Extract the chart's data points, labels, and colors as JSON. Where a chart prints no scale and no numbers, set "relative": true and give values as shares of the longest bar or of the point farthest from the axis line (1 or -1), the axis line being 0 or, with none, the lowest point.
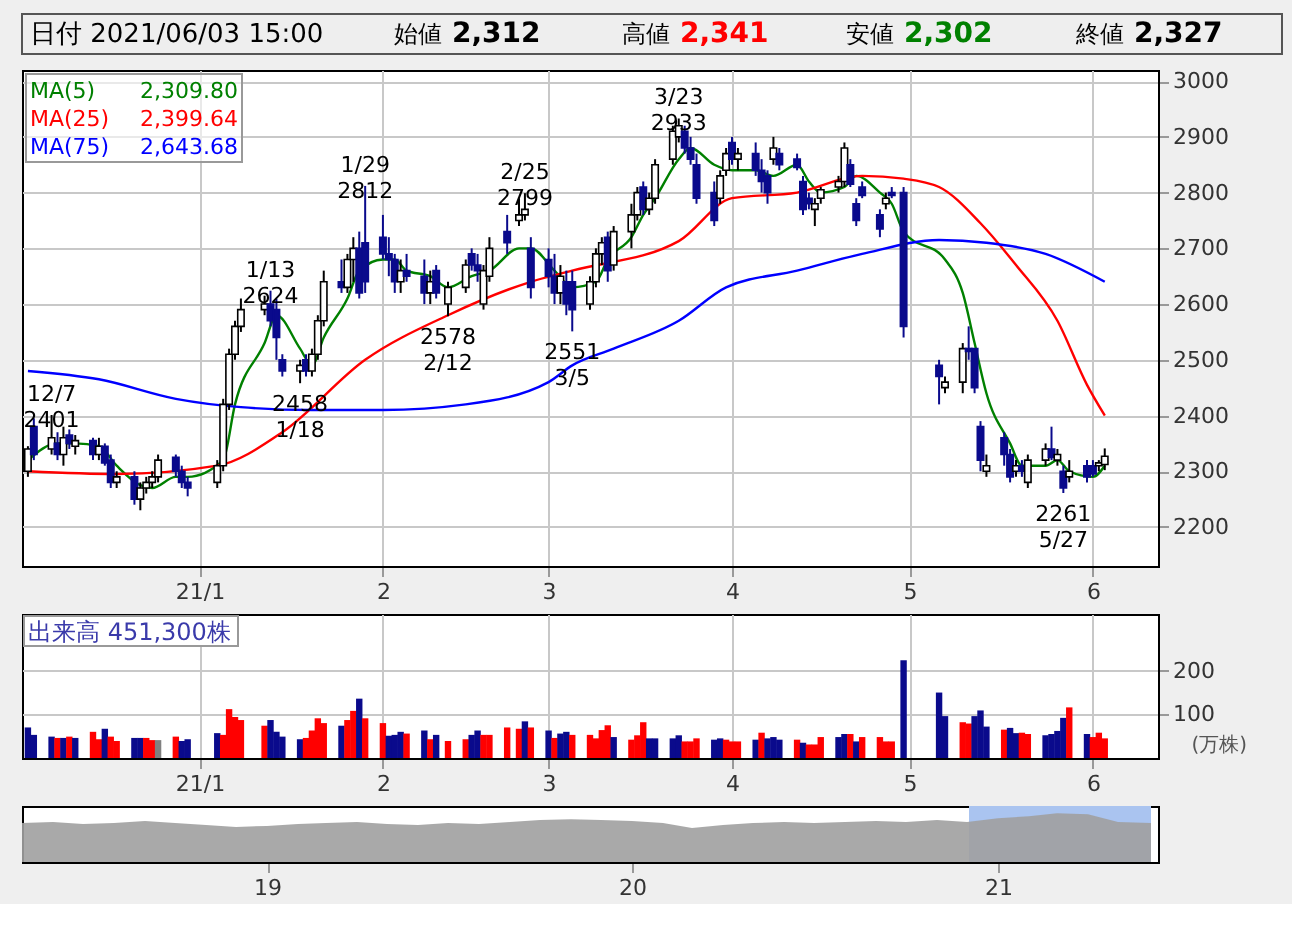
{
  "chart_data": [
    {
      "type": "candlestick",
      "annotations": [
        "日付 2021/06/03 15:00",
        "始値 2,312",
        "高値 2,341",
        "安値 2,302",
        "終値 2,327",
        {
          "text": "12/7 2401",
          "x": "2020-12-07",
          "y": 2401
        },
        {
          "text": "1/13 2624",
          "x": "2021-01-13",
          "y": 2624
        },
        {
          "text": "1/29 2812",
          "x": "2021-01-29",
          "y": 2812
        },
        {
          "text": "2/25 2799",
          "x": "2021-02-25",
          "y": 2799
        },
        {
          "text": "3/23 2933",
          "x": "2021-03-23",
          "y": 2933
        },
        {
          "text": "2458 1/18",
          "x": "2021-01-18",
          "y": 2458
        },
        {
          "text": "2578 2/12",
          "x": "2021-02-12",
          "y": 2578
        },
        {
          "text": "2551 3/5",
          "x": "2021-03-05",
          "y": 2551
        },
        {
          "text": "2261 5/27",
          "x": "2021-05-27",
          "y": 2261
        }
      ],
      "x": [
        "2020-12-03",
        "2020-12-04",
        "2020-12-07",
        "2020-12-08",
        "2020-12-09",
        "2020-12-10",
        "2020-12-11",
        "2020-12-14",
        "2020-12-15",
        "2020-12-16",
        "2020-12-17",
        "2020-12-18",
        "2020-12-21",
        "2020-12-22",
        "2020-12-23",
        "2020-12-24",
        "2020-12-25",
        "2020-12-28",
        "2020-12-29",
        "2020-12-30",
        "2021-01-04",
        "2021-01-05",
        "2021-01-06",
        "2021-01-07",
        "2021-01-08",
        "2021-01-12",
        "2021-01-13",
        "2021-01-14",
        "2021-01-15",
        "2021-01-18",
        "2021-01-19",
        "2021-01-20",
        "2021-01-21",
        "2021-01-22",
        "2021-01-25",
        "2021-01-26",
        "2021-01-27",
        "2021-01-28",
        "2021-01-29",
        "2021-02-01",
        "2021-02-02",
        "2021-02-03",
        "2021-02-04",
        "2021-02-05",
        "2021-02-08",
        "2021-02-09",
        "2021-02-10",
        "2021-02-12",
        "2021-02-15",
        "2021-02-16",
        "2021-02-17",
        "2021-02-18",
        "2021-02-19",
        "2021-02-22",
        "2021-02-24",
        "2021-02-25",
        "2021-02-26",
        "2021-03-01",
        "2021-03-02",
        "2021-03-03",
        "2021-03-04",
        "2021-03-05",
        "2021-03-08",
        "2021-03-09",
        "2021-03-10",
        "2021-03-11",
        "2021-03-12",
        "2021-03-15",
        "2021-03-16",
        "2021-03-17",
        "2021-03-18",
        "2021-03-19",
        "2021-03-22",
        "2021-03-23",
        "2021-03-24",
        "2021-03-25",
        "2021-03-26",
        "2021-03-29",
        "2021-03-30",
        "2021-03-31",
        "2021-04-01",
        "2021-04-02",
        "2021-04-05",
        "2021-04-06",
        "2021-04-07",
        "2021-04-08",
        "2021-04-09",
        "2021-04-12",
        "2021-04-13",
        "2021-04-14",
        "2021-04-15",
        "2021-04-16",
        "2021-04-19",
        "2021-04-20",
        "2021-04-21",
        "2021-04-22",
        "2021-04-23",
        "2021-04-26",
        "2021-04-27",
        "2021-04-28",
        "2021-04-30",
        "2021-05-06",
        "2021-05-07",
        "2021-05-10",
        "2021-05-11",
        "2021-05-12",
        "2021-05-13",
        "2021-05-14",
        "2021-05-17",
        "2021-05-18",
        "2021-05-19",
        "2021-05-20",
        "2021-05-21",
        "2021-05-24",
        "2021-05-25",
        "2021-05-26",
        "2021-05-27",
        "2021-05-28",
        "2021-05-31",
        "2021-06-01",
        "2021-06-02",
        "2021-06-03"
      ],
      "ohlc": [
        [
          2300,
          2345,
          2290,
          2340
        ],
        [
          2380,
          2395,
          2320,
          2330
        ],
        [
          2340,
          2401,
          2330,
          2360
        ],
        [
          2350,
          2370,
          2320,
          2330
        ],
        [
          2330,
          2380,
          2310,
          2360
        ],
        [
          2365,
          2375,
          2340,
          2350
        ],
        [
          2345,
          2365,
          2330,
          2355
        ],
        [
          2355,
          2360,
          2320,
          2330
        ],
        [
          2330,
          2360,
          2320,
          2345
        ],
        [
          2345,
          2350,
          2310,
          2315
        ],
        [
          2320,
          2330,
          2270,
          2280
        ],
        [
          2280,
          2300,
          2270,
          2290
        ],
        [
          2290,
          2300,
          2240,
          2250
        ],
        [
          2250,
          2280,
          2230,
          2270
        ],
        [
          2270,
          2290,
          2260,
          2280
        ],
        [
          2280,
          2300,
          2270,
          2290
        ],
        [
          2290,
          2330,
          2280,
          2320
        ],
        [
          2325,
          2330,
          2290,
          2300
        ],
        [
          2300,
          2310,
          2270,
          2280
        ],
        [
          2280,
          2290,
          2255,
          2270
        ],
        [
          2280,
          2320,
          2270,
          2310
        ],
        [
          2310,
          2430,
          2300,
          2420
        ],
        [
          2420,
          2520,
          2410,
          2510
        ],
        [
          2510,
          2570,
          2500,
          2560
        ],
        [
          2560,
          2610,
          2550,
          2590
        ],
        [
          2590,
          2615,
          2580,
          2600
        ],
        [
          2600,
          2624,
          2560,
          2570
        ],
        [
          2590,
          2610,
          2500,
          2540
        ],
        [
          2500,
          2510,
          2470,
          2480
        ],
        [
          2480,
          2500,
          2458,
          2490
        ],
        [
          2500,
          2510,
          2470,
          2480
        ],
        [
          2480,
          2520,
          2470,
          2510
        ],
        [
          2510,
          2580,
          2500,
          2570
        ],
        [
          2570,
          2660,
          2560,
          2640
        ],
        [
          2640,
          2680,
          2620,
          2630
        ],
        [
          2630,
          2690,
          2620,
          2680
        ],
        [
          2680,
          2720,
          2640,
          2700
        ],
        [
          2700,
          2730,
          2610,
          2620
        ],
        [
          2710,
          2812,
          2620,
          2640
        ],
        [
          2720,
          2760,
          2680,
          2690
        ],
        [
          2690,
          2720,
          2650,
          2680
        ],
        [
          2680,
          2690,
          2620,
          2640
        ],
        [
          2640,
          2680,
          2620,
          2660
        ],
        [
          2660,
          2690,
          2640,
          2650
        ],
        [
          2650,
          2680,
          2600,
          2620
        ],
        [
          2620,
          2660,
          2600,
          2640
        ],
        [
          2660,
          2670,
          2610,
          2620
        ],
        [
          2600,
          2640,
          2578,
          2630
        ],
        [
          2630,
          2680,
          2620,
          2670
        ],
        [
          2690,
          2700,
          2660,
          2670
        ],
        [
          2670,
          2690,
          2640,
          2660
        ],
        [
          2600,
          2670,
          2590,
          2660
        ],
        [
          2650,
          2720,
          2640,
          2700
        ],
        [
          2730,
          2760,
          2690,
          2710
        ],
        [
          2750,
          2790,
          2740,
          2760
        ],
        [
          2760,
          2799,
          2750,
          2770
        ],
        [
          2700,
          2720,
          2610,
          2630
        ],
        [
          2680,
          2700,
          2630,
          2650
        ],
        [
          2650,
          2690,
          2600,
          2620
        ],
        [
          2620,
          2670,
          2600,
          2650
        ],
        [
          2640,
          2660,
          2580,
          2600
        ],
        [
          2640,
          2660,
          2551,
          2590
        ],
        [
          2600,
          2650,
          2590,
          2640
        ],
        [
          2640,
          2700,
          2630,
          2690
        ],
        [
          2690,
          2720,
          2670,
          2710
        ],
        [
          2720,
          2730,
          2640,
          2660
        ],
        [
          2670,
          2740,
          2660,
          2730
        ],
        [
          2730,
          2780,
          2700,
          2760
        ],
        [
          2760,
          2810,
          2750,
          2800
        ],
        [
          2810,
          2820,
          2760,
          2770
        ],
        [
          2770,
          2800,
          2760,
          2790
        ],
        [
          2790,
          2860,
          2780,
          2850
        ],
        [
          2860,
          2920,
          2850,
          2910
        ],
        [
          2900,
          2933,
          2890,
          2920
        ],
        [
          2910,
          2920,
          2870,
          2880
        ],
        [
          2880,
          2900,
          2850,
          2860
        ],
        [
          2850,
          2870,
          2780,
          2790
        ],
        [
          2800,
          2820,
          2740,
          2750
        ],
        [
          2790,
          2840,
          2780,
          2830
        ],
        [
          2840,
          2880,
          2830,
          2870
        ],
        [
          2890,
          2900,
          2850,
          2860
        ],
        [
          2860,
          2880,
          2840,
          2870
        ],
        [
          2870,
          2890,
          2830,
          2840
        ],
        [
          2840,
          2860,
          2800,
          2820
        ],
        [
          2830,
          2840,
          2780,
          2800
        ],
        [
          2860,
          2900,
          2850,
          2880
        ],
        [
          2870,
          2880,
          2840,
          2850
        ],
        [
          2860,
          2870,
          2840,
          2845
        ],
        [
          2820,
          2830,
          2760,
          2770
        ],
        [
          2790,
          2800,
          2770,
          2780
        ],
        [
          2770,
          2790,
          2740,
          2780
        ],
        [
          2790,
          2810,
          2780,
          2805
        ],
        [
          2810,
          2830,
          2800,
          2820
        ],
        [
          2820,
          2890,
          2810,
          2880
        ],
        [
          2850,
          2860,
          2810,
          2815
        ],
        [
          2780,
          2790,
          2740,
          2750
        ],
        [
          2810,
          2820,
          2790,
          2795
        ],
        [
          2760,
          2770,
          2720,
          2735
        ],
        [
          2780,
          2800,
          2770,
          2790
        ],
        [
          2800,
          2810,
          2790,
          2795
        ],
        [
          2800,
          2810,
          2540,
          2560
        ],
        [
          2490,
          2500,
          2420,
          2470
        ],
        [
          2450,
          2470,
          2440,
          2460
        ],
        [
          2460,
          2530,
          2440,
          2520
        ],
        [
          2520,
          2560,
          2500,
          2515
        ],
        [
          2520,
          2520,
          2440,
          2450
        ],
        [
          2380,
          2390,
          2300,
          2320
        ],
        [
          2300,
          2330,
          2290,
          2310
        ],
        [
          2360,
          2370,
          2310,
          2330
        ],
        [
          2330,
          2340,
          2280,
          2290
        ],
        [
          2300,
          2320,
          2290,
          2310
        ],
        [
          2310,
          2320,
          2290,
          2300
        ],
        [
          2280,
          2330,
          2270,
          2320
        ],
        [
          2320,
          2350,
          2310,
          2340
        ],
        [
          2340,
          2380,
          2320,
          2325
        ],
        [
          2320,
          2340,
          2310,
          2330
        ],
        [
          2300,
          2310,
          2261,
          2270
        ],
        [
          2290,
          2320,
          2280,
          2300
        ],
        [
          2310,
          2320,
          2280,
          2290
        ],
        [
          2310,
          2320,
          2290,
          2295
        ],
        [
          2310,
          2320,
          2300,
          2315
        ],
        [
          2312,
          2341,
          2302,
          2327
        ]
      ],
      "series": [
        {
          "name": "MA(5) 2,309.80",
          "type": "line",
          "color": "#008000",
          "x": [
            "2020-12-03",
            "2020-12-08",
            "2020-12-11",
            "2020-12-15",
            "2020-12-18",
            "2020-12-22",
            "2020-12-24",
            "2020-12-28",
            "2020-12-30",
            "2021-01-05",
            "2021-01-07",
            "2021-01-12",
            "2021-01-14",
            "2021-01-18",
            "2021-01-20",
            "2021-01-22",
            "2021-01-26",
            "2021-01-28",
            "2021-02-01",
            "2021-02-03",
            "2021-02-05",
            "2021-02-09",
            "2021-02-12",
            "2021-02-16",
            "2021-02-19",
            "2021-02-24",
            "2021-02-26",
            "2021-03-02",
            "2021-03-05",
            "2021-03-09",
            "2021-03-11",
            "2021-03-15",
            "2021-03-17",
            "2021-03-19",
            "2021-03-23",
            "2021-03-25",
            "2021-03-29",
            "2021-04-01",
            "2021-04-05",
            "2021-04-08",
            "2021-04-12",
            "2021-04-14",
            "2021-04-16",
            "2021-04-20",
            "2021-04-22",
            "2021-04-26",
            "2021-04-28",
            "2021-04-30",
            "2021-05-07",
            "2021-05-10",
            "2021-05-12",
            "2021-05-14",
            "2021-05-18",
            "2021-05-20",
            "2021-05-24",
            "2021-05-26",
            "2021-05-28",
            "2021-06-01",
            "2021-06-03"
          ],
          "values": [
            2320,
            2350,
            2350,
            2345,
            2310,
            2275,
            2270,
            2290,
            2290,
            2320,
            2420,
            2530,
            2580,
            2520,
            2490,
            2540,
            2610,
            2660,
            2680,
            2680,
            2660,
            2650,
            2630,
            2650,
            2660,
            2700,
            2700,
            2660,
            2630,
            2640,
            2680,
            2720,
            2760,
            2790,
            2860,
            2880,
            2850,
            2840,
            2840,
            2830,
            2850,
            2820,
            2800,
            2810,
            2830,
            2800,
            2780,
            2730,
            2680,
            2620,
            2530,
            2440,
            2350,
            2310,
            2310,
            2320,
            2300,
            2290,
            2310
          ]
        },
        {
          "name": "MA(25) 2,399.64",
          "type": "line",
          "color": "#ff0000",
          "x": [
            "2020-12-03",
            "2020-12-18",
            "2021-01-04",
            "2021-01-15",
            "2021-01-29",
            "2021-02-12",
            "2021-02-26",
            "2021-03-05",
            "2021-03-23",
            "2021-04-01",
            "2021-04-12",
            "2021-04-23",
            "2021-04-30",
            "2021-05-06",
            "2021-05-13",
            "2021-05-19",
            "2021-05-26",
            "2021-05-31",
            "2021-06-03"
          ],
          "values": [
            2300,
            2295,
            2310,
            2370,
            2500,
            2580,
            2640,
            2660,
            2713,
            2790,
            2800,
            2830,
            2825,
            2810,
            2745,
            2670,
            2570,
            2455,
            2400
          ]
        },
        {
          "name": "MA(75) 2,643.68",
          "type": "line",
          "color": "#0000ff",
          "x": [
            "2020-12-03",
            "2020-12-15",
            "2020-12-28",
            "2021-01-08",
            "2021-01-20",
            "2021-02-01",
            "2021-02-15",
            "2021-03-01",
            "2021-03-05",
            "2021-03-12",
            "2021-03-23",
            "2021-03-31",
            "2021-04-12",
            "2021-04-23",
            "2021-05-06",
            "2021-05-14",
            "2021-05-24",
            "2021-06-03"
          ],
          "values": [
            2480,
            2465,
            2430,
            2415,
            2410,
            2410,
            2420,
            2460,
            2490,
            2520,
            2570,
            2630,
            2660,
            2690,
            2715,
            2710,
            2690,
            2640
          ]
        }
      ],
      "xlim": [
        "2020-12-02",
        "2021-06-12"
      ],
      "xticks": [
        {
          "value": "2021-01-01",
          "label": "21/1"
        },
        {
          "value": "2021-02-01",
          "label": "2"
        },
        {
          "value": "2021-03-01",
          "label": "3"
        },
        {
          "value": "2021-04-01",
          "label": "4"
        },
        {
          "value": "2021-05-01",
          "label": "5"
        },
        {
          "value": "2021-06-01",
          "label": "6"
        }
      ],
      "ylim": [
        2130,
        3020
      ],
      "yticks": [
        2200,
        2300,
        2400,
        2500,
        2600,
        2700,
        2800,
        2900,
        3000
      ],
      "grid": true
    },
    {
      "type": "bar",
      "title": "出来高 451,300株",
      "ylabel": "(万株)",
      "x": [
        "2020-12-03",
        "2020-12-04",
        "2020-12-07",
        "2020-12-08",
        "2020-12-09",
        "2020-12-10",
        "2020-12-11",
        "2020-12-14",
        "2020-12-15",
        "2020-12-16",
        "2020-12-17",
        "2020-12-18",
        "2020-12-21",
        "2020-12-22",
        "2020-12-23",
        "2020-12-24",
        "2020-12-25",
        "2020-12-28",
        "2020-12-29",
        "2020-12-30",
        "2021-01-04",
        "2021-01-05",
        "2021-01-06",
        "2021-01-07",
        "2021-01-08",
        "2021-01-12",
        "2021-01-13",
        "2021-01-14",
        "2021-01-15",
        "2021-01-18",
        "2021-01-19",
        "2021-01-20",
        "2021-01-21",
        "2021-01-22",
        "2021-01-25",
        "2021-01-26",
        "2021-01-27",
        "2021-01-28",
        "2021-01-29",
        "2021-02-01",
        "2021-02-02",
        "2021-02-03",
        "2021-02-04",
        "2021-02-05",
        "2021-02-08",
        "2021-02-09",
        "2021-02-10",
        "2021-02-12",
        "2021-02-15",
        "2021-02-16",
        "2021-02-17",
        "2021-02-18",
        "2021-02-19",
        "2021-02-22",
        "2021-02-24",
        "2021-02-25",
        "2021-02-26",
        "2021-03-01",
        "2021-03-02",
        "2021-03-03",
        "2021-03-04",
        "2021-03-05",
        "2021-03-08",
        "2021-03-09",
        "2021-03-10",
        "2021-03-11",
        "2021-03-12",
        "2021-03-15",
        "2021-03-16",
        "2021-03-17",
        "2021-03-18",
        "2021-03-19",
        "2021-03-22",
        "2021-03-23",
        "2021-03-24",
        "2021-03-25",
        "2021-03-26",
        "2021-03-29",
        "2021-03-30",
        "2021-03-31",
        "2021-04-01",
        "2021-04-02",
        "2021-04-05",
        "2021-04-06",
        "2021-04-07",
        "2021-04-08",
        "2021-04-09",
        "2021-04-12",
        "2021-04-13",
        "2021-04-14",
        "2021-04-15",
        "2021-04-16",
        "2021-04-19",
        "2021-04-20",
        "2021-04-21",
        "2021-04-22",
        "2021-04-23",
        "2021-04-26",
        "2021-04-27",
        "2021-04-28",
        "2021-04-30",
        "2021-05-06",
        "2021-05-07",
        "2021-05-10",
        "2021-05-11",
        "2021-05-12",
        "2021-05-13",
        "2021-05-14",
        "2021-05-17",
        "2021-05-18",
        "2021-05-19",
        "2021-05-20",
        "2021-05-21",
        "2021-05-24",
        "2021-05-25",
        "2021-05-26",
        "2021-05-27",
        "2021-05-28",
        "2021-05-31",
        "2021-06-01",
        "2021-06-02",
        "2021-06-03"
      ],
      "values": [
        70,
        53,
        49,
        46,
        46,
        49,
        46,
        60,
        43,
        67,
        49,
        39,
        46,
        46,
        46,
        41,
        41,
        49,
        39,
        43,
        57,
        53,
        112,
        94,
        87,
        74,
        87,
        60,
        49,
        43,
        46,
        63,
        91,
        80,
        74,
        87,
        108,
        136,
        91,
        80,
        51,
        53,
        60,
        56,
        63,
        43,
        53,
        39,
        43,
        53,
        63,
        53,
        53,
        70,
        67,
        84,
        70,
        63,
        46,
        56,
        60,
        53,
        53,
        45,
        64,
        75,
        48,
        42,
        52,
        82,
        45,
        45,
        45,
        52,
        38,
        38,
        45,
        42,
        45,
        42,
        38,
        38,
        42,
        58,
        45,
        48,
        42,
        42,
        35,
        31,
        31,
        48,
        48,
        55,
        55,
        38,
        48,
        48,
        38,
        38,
        224,
        150,
        96,
        82,
        79,
        96,
        109,
        72,
        65,
        69,
        57,
        58,
        55,
        52,
        55,
        62,
        92,
        116,
        55,
        48,
        58,
        45
      ],
      "colors": [
        "#0a0a8c",
        "#0a0a8c",
        "#0a0a8c",
        "#ff0000",
        "#0a0a8c",
        "#ff0000",
        "#0a0a8c",
        "#ff0000",
        "#ff0000",
        "#0a0a8c",
        "#ff0000",
        "#ff0000",
        "#0a0a8c",
        "#0a0a8c",
        "#ff0000",
        "#ff0000",
        "#808080",
        "#ff0000",
        "#0a0a8c",
        "#0a0a8c",
        "#0a0a8c",
        "#ff0000",
        "#ff0000",
        "#ff0000",
        "#ff0000",
        "#ff0000",
        "#0a0a8c",
        "#0a0a8c",
        "#0a0a8c",
        "#0a0a8c",
        "#ff0000",
        "#ff0000",
        "#ff0000",
        "#ff0000",
        "#0a0a8c",
        "#ff0000",
        "#ff0000",
        "#0a0a8c",
        "#ff0000",
        "#ff0000",
        "#0a0a8c",
        "#0a0a8c",
        "#0a0a8c",
        "#ff0000",
        "#0a0a8c",
        "#ff0000",
        "#0a0a8c",
        "#ff0000",
        "#ff0000",
        "#0a0a8c",
        "#0a0a8c",
        "#ff0000",
        "#ff0000",
        "#ff0000",
        "#ff0000",
        "#0a0a8c",
        "#ff0000",
        "#0a0a8c",
        "#ff0000",
        "#0a0a8c",
        "#0a0a8c",
        "#ff0000",
        "#ff0000",
        "#ff0000",
        "#ff0000",
        "#ff0000",
        "#0a0a8c",
        "#ff0000",
        "#ff0000",
        "#ff0000",
        "#0a0a8c",
        "#0a0a8c",
        "#0a0a8c",
        "#0a0a8c",
        "#ff0000",
        "#ff0000",
        "#ff0000",
        "#0a0a8c",
        "#0a0a8c",
        "#ff0000",
        "#ff0000",
        "#ff0000",
        "#0a0a8c",
        "#ff0000",
        "#0a0a8c",
        "#0a0a8c",
        "#0a0a8c",
        "#ff0000",
        "#0a0a8c",
        "#ff0000",
        "#ff0000",
        "#ff0000",
        "#0a0a8c",
        "#0a0a8c",
        "#ff0000",
        "#0a0a8c",
        "#ff0000",
        "#ff0000",
        "#ff0000",
        "#ff0000",
        "#0a0a8c",
        "#0a0a8c",
        "#0a0a8c",
        "#ff0000",
        "#ff0000",
        "#0a0a8c",
        "#0a0a8c",
        "#0a0a8c",
        "#ff0000",
        "#0a0a8c",
        "#0a0a8c",
        "#ff0000",
        "#ff0000",
        "#0a0a8c",
        "#0a0a8c",
        "#0a0a8c",
        "#0a0a8c",
        "#ff0000",
        "#0a0a8c",
        "#ff0000",
        "#ff0000",
        "#ff0000"
      ],
      "xlim": [
        "2020-12-02",
        "2021-06-12"
      ],
      "xticks": [
        {
          "value": "2021-01-01",
          "label": "21/1"
        },
        {
          "value": "2021-02-01",
          "label": "2"
        },
        {
          "value": "2021-03-01",
          "label": "3"
        },
        {
          "value": "2021-04-01",
          "label": "4"
        },
        {
          "value": "2021-05-01",
          "label": "5"
        },
        {
          "value": "2021-06-01",
          "label": "6"
        }
      ],
      "ylim": [
        0,
        330
      ],
      "yticks": [
        100,
        200
      ],
      "grid": true
    },
    {
      "type": "area",
      "relative": true,
      "tick_labels": "x",
      "x": [
        "2018-05-01",
        "2018-06-01",
        "2018-07-01",
        "2018-08-01",
        "2018-09-01",
        "2018-10-01",
        "2018-11-01",
        "2018-12-01",
        "2019-01-01",
        "2019-02-01",
        "2019-03-01",
        "2019-04-01",
        "2019-05-01",
        "2019-06-01",
        "2019-07-01",
        "2019-08-01",
        "2019-09-01",
        "2019-10-01",
        "2019-11-01",
        "2019-12-01",
        "2020-01-01",
        "2020-02-01",
        "2020-03-01",
        "2020-04-01",
        "2020-05-01",
        "2020-06-01",
        "2020-07-01",
        "2020-08-01",
        "2020-09-01",
        "2020-10-01",
        "2020-11-01",
        "2020-12-01",
        "2021-01-01",
        "2021-02-01",
        "2021-03-01",
        "2021-04-01",
        "2021-05-01",
        "2021-06-03"
      ],
      "series": [
        {
          "color": "#a0a0a0",
          "values": [
            0.8,
            0.82,
            0.78,
            0.8,
            0.84,
            0.8,
            0.76,
            0.72,
            0.74,
            0.78,
            0.8,
            0.82,
            0.78,
            0.76,
            0.8,
            0.78,
            0.82,
            0.86,
            0.88,
            0.86,
            0.84,
            0.8,
            0.7,
            0.76,
            0.8,
            0.82,
            0.8,
            0.82,
            0.84,
            0.82,
            0.86,
            0.82,
            0.9,
            0.94,
            1.0,
            0.98,
            0.82,
            0.8
          ]
        }
      ],
      "bands": [
        {
          "axis": "x",
          "from": "2020-12-03",
          "to": "2021-06-03",
          "color": "#aac4f0"
        }
      ],
      "xlim": [
        "2018-05-01",
        "2021-06-10"
      ],
      "xticks": [
        {
          "value": "2019-01-01",
          "label": "19"
        },
        {
          "value": "2020-01-01",
          "label": "20"
        },
        {
          "value": "2021-01-01",
          "label": "21"
        }
      ]
    }
  ]
}
